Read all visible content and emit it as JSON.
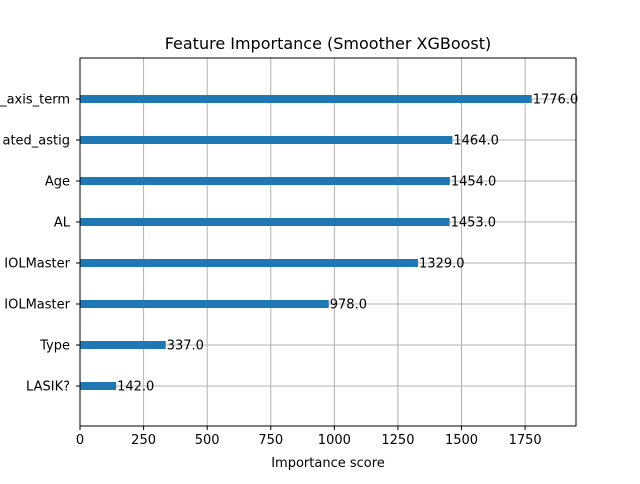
{
  "chart_data": {
    "type": "bar",
    "orientation": "horizontal",
    "title": "Feature Importance (Smoother XGBoost)",
    "xlabel": "Importance score",
    "ylabel": "",
    "xlim": [
      0,
      1950
    ],
    "xticks": [
      0,
      250,
      500,
      750,
      1000,
      1250,
      1500,
      1750
    ],
    "xtick_labels": [
      "0",
      "250",
      "500",
      "750",
      "1000",
      "1250",
      "1500",
      "1750"
    ],
    "grid": true,
    "bar_color": "#1f77b4",
    "categories": [
      "_axis_term",
      "ated_astig",
      "Age",
      "AL",
      "IOLMaster",
      "IOLMaster",
      "Type",
      "LASIK?"
    ],
    "values": [
      1776.0,
      1464.0,
      1454.0,
      1453.0,
      1329.0,
      978.0,
      337.0,
      142.0
    ],
    "value_labels": [
      "1776.0",
      "1464.0",
      "1454.0",
      "1453.0",
      "1329.0",
      "978.0",
      "337.0",
      "142.0"
    ]
  }
}
